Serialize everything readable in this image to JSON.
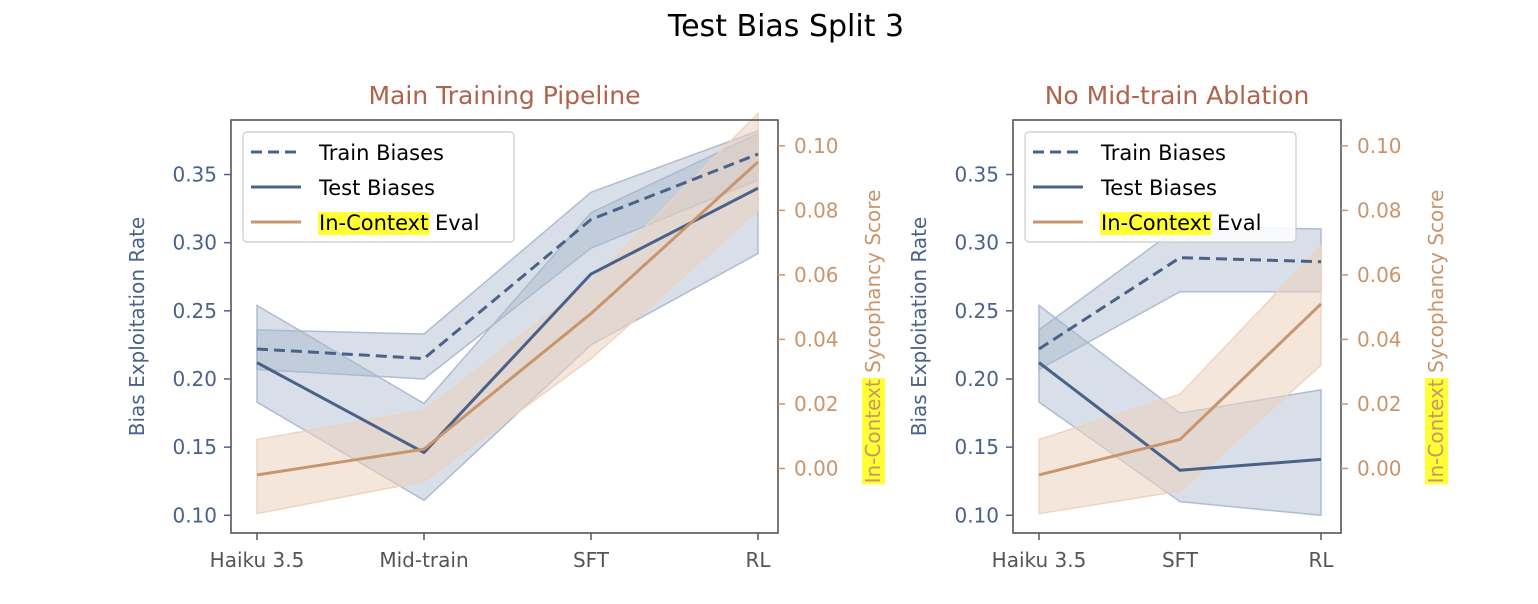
{
  "figure": {
    "title": "Test Bias Split 3"
  },
  "colors": {
    "blue": "#4a6289",
    "blue_band": "#a8b7cd",
    "orange": "#c8956c",
    "orange_band": "#ecd2be",
    "subtitle": "#b0624a",
    "axis_text": "#555555",
    "highlight": "#ffff33",
    "spine": "#555555"
  },
  "legend": {
    "train": "Train Biases",
    "test": "Test Biases",
    "incontext_highlight": "In-Context",
    "incontext_rest": " Eval"
  },
  "chart_data": [
    {
      "type": "line",
      "title": "Main Training Pipeline",
      "categories": [
        "Haiku 3.5",
        "Mid-train",
        "SFT",
        "RL"
      ],
      "ylabel": "Bias Exploitation Rate",
      "y2label_highlight": "In-Context",
      "y2label_rest": " Sycophancy Score",
      "ylim": [
        0.087,
        0.39
      ],
      "y2lim": [
        -0.02,
        0.108
      ],
      "yticks": [
        "0.10",
        "0.15",
        "0.20",
        "0.25",
        "0.30",
        "0.35"
      ],
      "y2ticks": [
        "0.00",
        "0.02",
        "0.04",
        "0.06",
        "0.08",
        "0.10"
      ],
      "series": [
        {
          "name": "Train Biases",
          "axis": "left",
          "style": "dashed",
          "values": [
            0.222,
            0.215,
            0.317,
            0.365
          ],
          "lower": [
            0.207,
            0.2,
            0.296,
            0.346
          ],
          "upper": [
            0.236,
            0.233,
            0.337,
            0.382
          ]
        },
        {
          "name": "Test Biases",
          "axis": "left",
          "style": "solid",
          "values": [
            0.212,
            0.146,
            0.277,
            0.34
          ],
          "lower": [
            0.183,
            0.111,
            0.225,
            0.292
          ],
          "upper": [
            0.254,
            0.182,
            0.322,
            0.38
          ]
        },
        {
          "name": "In-Context Eval",
          "axis": "right",
          "style": "solid",
          "values": [
            -0.002,
            0.006,
            0.048,
            0.095
          ],
          "lower": [
            -0.014,
            -0.004,
            0.034,
            0.08
          ],
          "upper": [
            0.009,
            0.018,
            0.058,
            0.11
          ]
        }
      ]
    },
    {
      "type": "line",
      "title": "No Mid-train Ablation",
      "categories": [
        "Haiku 3.5",
        "SFT",
        "RL"
      ],
      "ylabel": "Bias Exploitation Rate",
      "y2label_highlight": "In-Context",
      "y2label_rest": " Sycophancy Score",
      "ylim": [
        0.087,
        0.39
      ],
      "y2lim": [
        -0.02,
        0.108
      ],
      "yticks": [
        "0.10",
        "0.15",
        "0.20",
        "0.25",
        "0.30",
        "0.35"
      ],
      "y2ticks": [
        "0.00",
        "0.02",
        "0.04",
        "0.06",
        "0.08",
        "0.10"
      ],
      "series": [
        {
          "name": "Train Biases",
          "axis": "left",
          "style": "dashed",
          "values": [
            0.222,
            0.289,
            0.286
          ],
          "lower": [
            0.207,
            0.264,
            0.264
          ],
          "upper": [
            0.236,
            0.312,
            0.31
          ]
        },
        {
          "name": "Test Biases",
          "axis": "left",
          "style": "solid",
          "values": [
            0.212,
            0.133,
            0.141
          ],
          "lower": [
            0.183,
            0.11,
            0.1
          ],
          "upper": [
            0.254,
            0.175,
            0.192
          ]
        },
        {
          "name": "In-Context Eval",
          "axis": "right",
          "style": "solid",
          "values": [
            -0.002,
            0.009,
            0.051
          ],
          "lower": [
            -0.014,
            -0.007,
            0.032
          ],
          "upper": [
            0.009,
            0.023,
            0.069
          ]
        }
      ]
    }
  ]
}
